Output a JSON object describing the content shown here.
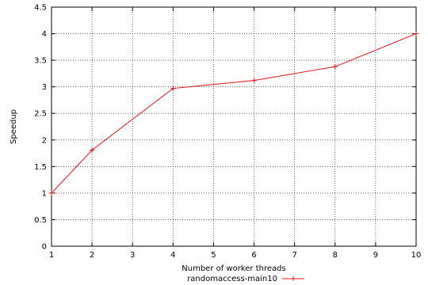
{
  "chart_data": {
    "type": "line",
    "title": "",
    "xlabel": "Number of worker threads",
    "ylabel": "Speedup",
    "xlim": [
      1,
      10
    ],
    "ylim": [
      0,
      4.5
    ],
    "x_ticks": [
      1,
      2,
      3,
      4,
      5,
      6,
      7,
      8,
      9,
      10
    ],
    "y_ticks": [
      0,
      0.5,
      1,
      1.5,
      2,
      2.5,
      3,
      3.5,
      4,
      4.5
    ],
    "grid": true,
    "legend_position": "bottom-center",
    "series": [
      {
        "name": "randomaccess-main10",
        "color": "#e8101a",
        "marker": "plus",
        "x": [
          1,
          2,
          4,
          6,
          8,
          10
        ],
        "y": [
          1.0,
          1.81,
          2.97,
          3.12,
          3.38,
          4.0
        ]
      }
    ]
  }
}
